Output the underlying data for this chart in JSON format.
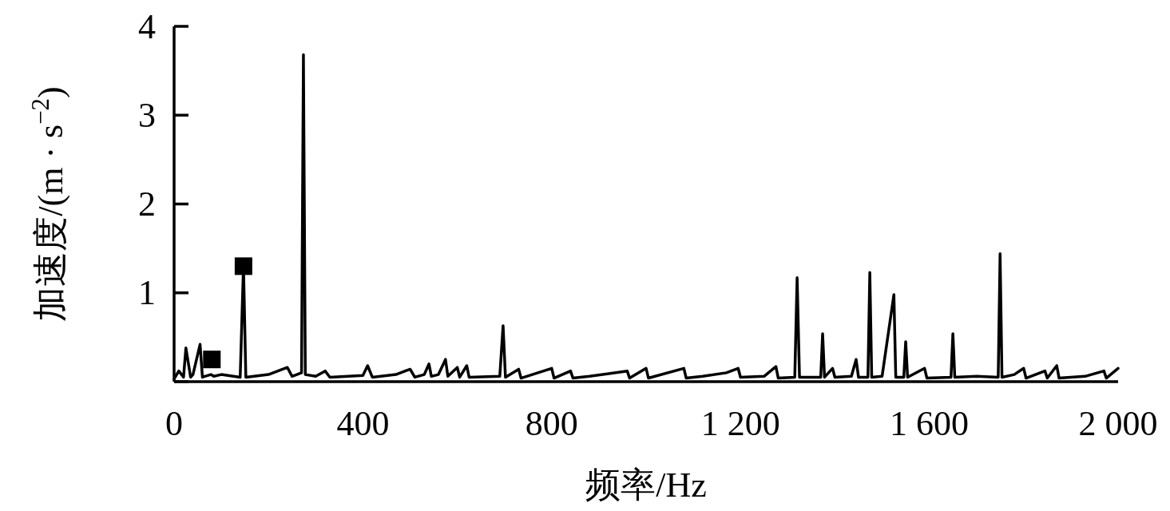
{
  "chart_data": {
    "type": "line",
    "xlabel": "频率/Hz",
    "ylabel": "加速度/(m · s$^{−2}$)",
    "xlim": [
      0,
      2000
    ],
    "ylim": [
      0,
      4
    ],
    "xticks": [
      0,
      400,
      800,
      {
        "value": 1200,
        "label": "1 200"
      },
      {
        "value": 1600,
        "label": "1 600"
      },
      {
        "value": 2000,
        "label": "2 000"
      }
    ],
    "yticks": [
      {
        "value": 0,
        "label": null
      },
      1,
      2,
      3,
      4
    ],
    "series": [
      {
        "color": "#000000",
        "line_style": "solid",
        "marker": "none",
        "x": [
          0,
          10,
          20,
          25,
          35,
          40,
          55,
          60,
          65,
          78,
          84,
          100,
          140,
          147,
          152,
          200,
          240,
          250,
          270,
          274,
          278,
          300,
          320,
          330,
          400,
          410,
          420,
          470,
          500,
          510,
          530,
          540,
          545,
          560,
          575,
          580,
          600,
          605,
          620,
          625,
          690,
          697,
          702,
          730,
          735,
          800,
          805,
          840,
          845,
          880,
          960,
          965,
          1000,
          1005,
          1080,
          1085,
          1120,
          1170,
          1195,
          1200,
          1250,
          1275,
          1280,
          1315,
          1320,
          1325,
          1370,
          1374,
          1378,
          1395,
          1400,
          1435,
          1445,
          1450,
          1470,
          1474,
          1478,
          1500,
          1525,
          1529,
          1546,
          1550,
          1554,
          1590,
          1595,
          1646,
          1650,
          1654,
          1700,
          1746,
          1750,
          1754,
          1780,
          1800,
          1805,
          1845,
          1850,
          1870,
          1875,
          1930,
          1970,
          1975,
          2000
        ],
        "values": [
          0.03,
          0.12,
          0.05,
          0.38,
          0.05,
          0.08,
          0.42,
          0.05,
          0.06,
          0.08,
          0.06,
          0.08,
          0.05,
          1.3,
          0.05,
          0.08,
          0.16,
          0.06,
          0.1,
          3.68,
          0.08,
          0.06,
          0.12,
          0.05,
          0.07,
          0.18,
          0.05,
          0.08,
          0.14,
          0.05,
          0.08,
          0.2,
          0.06,
          0.08,
          0.25,
          0.06,
          0.16,
          0.05,
          0.18,
          0.05,
          0.06,
          0.63,
          0.05,
          0.14,
          0.04,
          0.15,
          0.04,
          0.12,
          0.04,
          0.06,
          0.12,
          0.04,
          0.15,
          0.04,
          0.15,
          0.04,
          0.06,
          0.1,
          0.15,
          0.05,
          0.06,
          0.17,
          0.04,
          0.05,
          1.17,
          0.05,
          0.05,
          0.54,
          0.05,
          0.15,
          0.05,
          0.06,
          0.25,
          0.05,
          0.05,
          1.23,
          0.05,
          0.06,
          0.98,
          0.05,
          0.05,
          0.45,
          0.05,
          0.15,
          0.04,
          0.05,
          0.54,
          0.05,
          0.06,
          0.05,
          1.44,
          0.05,
          0.08,
          0.15,
          0.04,
          0.12,
          0.04,
          0.18,
          0.04,
          0.06,
          0.12,
          0.04,
          0.15
        ]
      },
      {
        "type": "scatter",
        "color": "#000000",
        "marker": "square",
        "x": [
          80,
          147
        ],
        "values": [
          0.25,
          1.3
        ]
      }
    ]
  }
}
